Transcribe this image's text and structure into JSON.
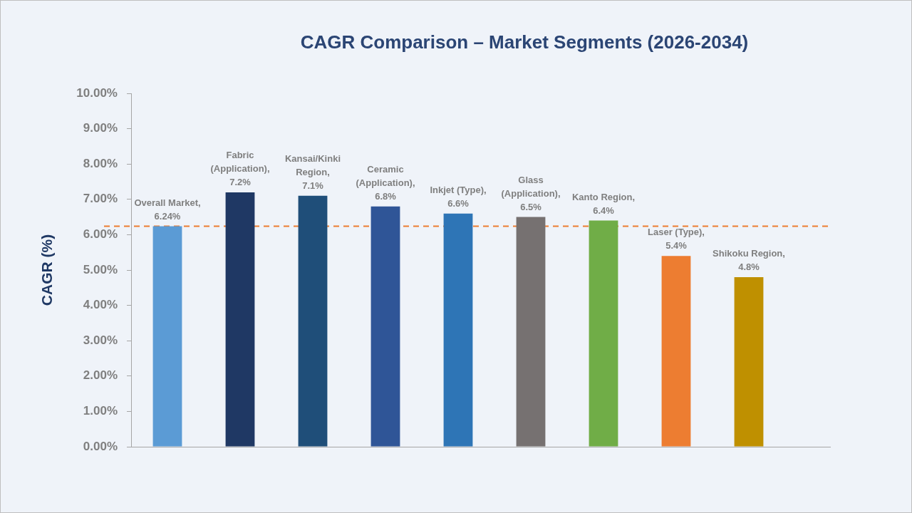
{
  "chart_data": {
    "type": "bar",
    "title": "CAGR Comparison – Market Segments (2026-2034)",
    "ylabel": "CAGR (%)",
    "categories": [
      null,
      null,
      null,
      null,
      null,
      null,
      null,
      null,
      null
    ],
    "values": [
      6.24,
      7.2,
      7.1,
      6.8,
      6.6,
      6.5,
      6.4,
      5.4,
      4.8
    ],
    "colors": [
      "#5b9bd5",
      "#1f3864",
      "#1f4e79",
      "#2f5597",
      "#2e75b6",
      "#767171",
      "#70ad47",
      "#ed7d31",
      "#bf9000"
    ],
    "value_labels": [
      "Overall Market, 6.24%",
      "Fabric (Application), 7.2%",
      "Kansai/Kinki Region, 7.1%",
      "Ceramic (Application), 6.8%",
      "Inkjet (Type), 6.6%",
      "Glass (Application), 6.5%",
      "Kanto Region, 6.4%",
      "Laser (Type), 5.4%",
      "Shikoku Region, 4.8%"
    ],
    "ylim": [
      0,
      10
    ],
    "yticks": [
      {
        "value": 0,
        "label": "0.00%"
      },
      {
        "value": 1,
        "label": "1.00%"
      },
      {
        "value": 2,
        "label": "2.00%"
      },
      {
        "value": 3,
        "label": "3.00%"
      },
      {
        "value": 4,
        "label": "4.00%"
      },
      {
        "value": 5,
        "label": "5.00%"
      },
      {
        "value": 6,
        "label": "6.00%"
      },
      {
        "value": 7,
        "label": "7.00%"
      },
      {
        "value": 8,
        "label": "8.00%"
      },
      {
        "value": 9,
        "label": "9.00%"
      },
      {
        "value": 10,
        "label": "10.00%"
      }
    ],
    "ref_lines": [
      {
        "axis": "y",
        "value": 6.24,
        "color": "#ed7d31",
        "line_style": "dashed"
      }
    ]
  }
}
